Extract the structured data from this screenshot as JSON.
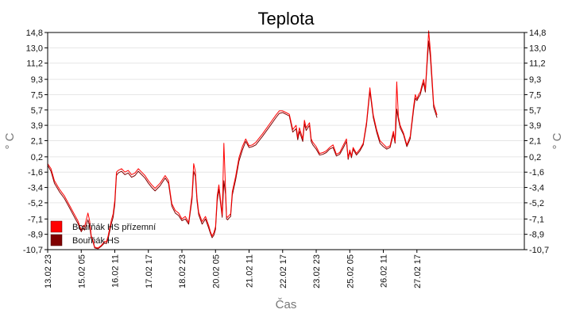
{
  "chart_data": {
    "type": "line",
    "title": "Teplota",
    "xlabel": "Čas",
    "ylabel": "° C",
    "ylabel_right": "° C",
    "grid": true,
    "legend_position": "bottom-left",
    "ylim": [
      -10.7,
      14.8
    ],
    "yticks": [
      14.8,
      13.0,
      11.2,
      9.3,
      7.5,
      5.7,
      3.9,
      2.1,
      0.2,
      -1.6,
      -3.4,
      -5.2,
      -7.1,
      -8.9,
      -10.7
    ],
    "ytick_labels": [
      "14,8",
      "13,0",
      "11,2",
      "9,3",
      "7,5",
      "5,7",
      "3,9",
      "2,1",
      "0,2",
      "-1,6",
      "-3,4",
      "-5,2",
      "-7,1",
      "-8,9",
      "-10,7"
    ],
    "xlim": [
      0,
      14.2
    ],
    "xticks": [
      0,
      1,
      2,
      3,
      4,
      5,
      6,
      7,
      8,
      9,
      10,
      11
    ],
    "xtick_labels": [
      "13.02 23",
      "15.02 05",
      "16.02 11",
      "17.02 17",
      "18.02 23",
      "20.02 05",
      "21.02 11",
      "22.02 17",
      "23.02 23",
      "25.02 05",
      "26.02 11",
      "27.02 17"
    ],
    "series": [
      {
        "name": "Bouřňák HS přízemní",
        "color": "#ff0000",
        "x": [
          0,
          0.1,
          0.2,
          0.35,
          0.5,
          0.65,
          0.8,
          0.9,
          1.0,
          1.05,
          1.1,
          1.2,
          1.25,
          1.3,
          1.35,
          1.4,
          1.5,
          1.6,
          1.7,
          1.75,
          1.8,
          1.85,
          1.9,
          1.95,
          2.0,
          2.05,
          2.1,
          2.2,
          2.3,
          2.4,
          2.5,
          2.6,
          2.7,
          2.8,
          2.9,
          3.0,
          3.1,
          3.2,
          3.35,
          3.5,
          3.6,
          3.7,
          3.8,
          3.9,
          4.0,
          4.1,
          4.2,
          4.3,
          4.35,
          4.4,
          4.45,
          4.5,
          4.6,
          4.7,
          4.8,
          4.85,
          4.9,
          4.95,
          5.0,
          5.05,
          5.1,
          5.2,
          5.25,
          5.3,
          5.33,
          5.36,
          5.4,
          5.45,
          5.5,
          5.6,
          5.7,
          5.8,
          5.9,
          6.0,
          6.1,
          6.2,
          6.4,
          6.6,
          6.8,
          6.9,
          7.0,
          7.1,
          7.2,
          7.3,
          7.4,
          7.45,
          7.5,
          7.6,
          7.65,
          7.7,
          7.8,
          7.85,
          7.9,
          8.0,
          8.1,
          8.2,
          8.3,
          8.4,
          8.5,
          8.6,
          8.7,
          8.8,
          8.9,
          8.95,
          9.0,
          9.05,
          9.1,
          9.2,
          9.3,
          9.4,
          9.5,
          9.6,
          9.7,
          9.8,
          9.9,
          10.0,
          10.1,
          10.2,
          10.3,
          10.35,
          10.4,
          10.45,
          10.5,
          10.6,
          10.7,
          10.8,
          10.9,
          10.95,
          11.0,
          11.05,
          11.1,
          11.15,
          11.2,
          11.25,
          11.3,
          11.35,
          11.4,
          11.5,
          11.6
        ],
        "values": [
          -0.6,
          -1.2,
          -2.6,
          -3.6,
          -4.4,
          -5.5,
          -6.6,
          -7.3,
          -8.4,
          -7.9,
          -8.0,
          -6.4,
          -7.3,
          -9.1,
          -9.6,
          -10.4,
          -10.5,
          -10.2,
          -9.7,
          -9.8,
          -9.1,
          -8.1,
          -7.2,
          -6.5,
          -4.9,
          -1.6,
          -1.4,
          -1.2,
          -1.6,
          -1.4,
          -1.9,
          -1.7,
          -1.2,
          -1.6,
          -2.0,
          -2.6,
          -3.1,
          -3.5,
          -2.9,
          -2.0,
          -2.6,
          -5.3,
          -6.1,
          -6.4,
          -7.1,
          -6.8,
          -7.5,
          -4.3,
          -0.6,
          -1.5,
          -4.6,
          -6.3,
          -7.4,
          -6.8,
          -7.9,
          -8.6,
          -9.1,
          -8.7,
          -8.0,
          -4.4,
          -3.1,
          -6.6,
          1.8,
          -3.6,
          -6.8,
          -6.9,
          -6.7,
          -6.5,
          -3.9,
          -2.1,
          0.1,
          1.4,
          2.3,
          1.5,
          1.6,
          1.9,
          2.9,
          4.0,
          5.1,
          5.6,
          5.6,
          5.4,
          5.2,
          3.4,
          3.9,
          2.5,
          3.6,
          2.3,
          4.5,
          3.6,
          4.2,
          2.3,
          1.9,
          1.4,
          0.6,
          0.7,
          0.9,
          1.3,
          1.6,
          0.5,
          0.7,
          1.5,
          2.3,
          0.1,
          1.0,
          0.3,
          1.3,
          0.6,
          1.1,
          1.8,
          4.3,
          8.3,
          5.1,
          3.4,
          2.1,
          1.7,
          1.3,
          1.5,
          3.2,
          2.0,
          9.0,
          4.9,
          3.9,
          3.0,
          1.6,
          2.6,
          6.1,
          7.5,
          7.0,
          7.5,
          7.8,
          8.6,
          9.3,
          8.1,
          11.5,
          15.0,
          12.7,
          6.4,
          5.1
        ],
        "x_extra_note": ""
      },
      {
        "name": "Bouřňák HS",
        "color": "#800000",
        "x": [
          0,
          0.1,
          0.2,
          0.35,
          0.5,
          0.65,
          0.8,
          0.9,
          1.0,
          1.05,
          1.1,
          1.2,
          1.25,
          1.3,
          1.35,
          1.4,
          1.5,
          1.6,
          1.7,
          1.75,
          1.8,
          1.85,
          1.9,
          1.95,
          2.0,
          2.05,
          2.1,
          2.2,
          2.3,
          2.4,
          2.5,
          2.6,
          2.7,
          2.8,
          2.9,
          3.0,
          3.1,
          3.2,
          3.35,
          3.5,
          3.6,
          3.7,
          3.8,
          3.9,
          4.0,
          4.1,
          4.2,
          4.3,
          4.35,
          4.4,
          4.45,
          4.5,
          4.6,
          4.7,
          4.8,
          4.85,
          4.9,
          4.95,
          5.0,
          5.05,
          5.1,
          5.2,
          5.25,
          5.3,
          5.33,
          5.36,
          5.4,
          5.45,
          5.5,
          5.6,
          5.7,
          5.8,
          5.9,
          6.0,
          6.1,
          6.2,
          6.4,
          6.6,
          6.8,
          6.9,
          7.0,
          7.1,
          7.2,
          7.3,
          7.4,
          7.45,
          7.5,
          7.6,
          7.65,
          7.7,
          7.8,
          7.85,
          7.9,
          8.0,
          8.1,
          8.2,
          8.3,
          8.4,
          8.5,
          8.6,
          8.7,
          8.8,
          8.9,
          8.95,
          9.0,
          9.05,
          9.1,
          9.2,
          9.3,
          9.4,
          9.5,
          9.6,
          9.7,
          9.8,
          9.9,
          10.0,
          10.1,
          10.2,
          10.3,
          10.35,
          10.4,
          10.45,
          10.5,
          10.6,
          10.7,
          10.8,
          10.9,
          10.95,
          11.0,
          11.05,
          11.1,
          11.15,
          11.2,
          11.25,
          11.3,
          11.35,
          11.4,
          11.5,
          11.6
        ],
        "values": [
          -0.8,
          -1.5,
          -2.9,
          -3.9,
          -4.7,
          -5.8,
          -6.9,
          -7.6,
          -8.6,
          -8.2,
          -8.4,
          -7.2,
          -7.9,
          -9.3,
          -9.8,
          -10.5,
          -10.6,
          -10.3,
          -9.9,
          -10.0,
          -9.4,
          -8.5,
          -7.6,
          -6.9,
          -5.4,
          -2.0,
          -1.7,
          -1.5,
          -1.9,
          -1.7,
          -2.2,
          -2.0,
          -1.5,
          -1.9,
          -2.3,
          -2.9,
          -3.4,
          -3.8,
          -3.2,
          -2.3,
          -2.9,
          -5.6,
          -6.4,
          -6.7,
          -7.3,
          -7.1,
          -7.7,
          -4.8,
          -1.5,
          -2.1,
          -5.0,
          -6.6,
          -7.7,
          -7.1,
          -8.2,
          -8.8,
          -9.3,
          -9.0,
          -8.3,
          -5.0,
          -3.6,
          -6.9,
          -2.6,
          -4.2,
          -7.1,
          -7.2,
          -7.0,
          -6.8,
          -4.3,
          -2.5,
          -0.3,
          1.0,
          2.0,
          1.3,
          1.4,
          1.6,
          2.6,
          3.7,
          4.8,
          5.3,
          5.4,
          5.2,
          5.0,
          3.1,
          3.5,
          2.2,
          3.2,
          2.0,
          4.1,
          3.3,
          3.9,
          2.0,
          1.6,
          1.1,
          0.4,
          0.5,
          0.7,
          1.1,
          1.3,
          0.3,
          0.5,
          1.2,
          2.0,
          -0.1,
          0.8,
          0.1,
          1.1,
          0.4,
          0.9,
          1.6,
          4.0,
          7.9,
          4.8,
          3.1,
          1.8,
          1.4,
          1.1,
          1.3,
          2.9,
          1.8,
          5.8,
          4.6,
          3.6,
          2.8,
          1.4,
          2.3,
          5.7,
          7.1,
          6.8,
          7.2,
          7.5,
          8.3,
          8.9,
          7.8,
          10.9,
          13.8,
          11.9,
          6.0,
          4.8
        ]
      }
    ]
  }
}
